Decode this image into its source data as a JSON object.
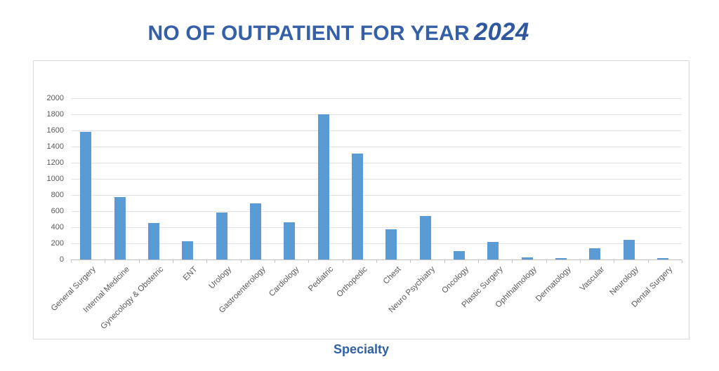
{
  "title": {
    "text": "NO OF OUTPATIENT FOR YEAR",
    "year": "2024"
  },
  "x_axis_title": "Specialty",
  "colors": {
    "bar": "#5B9BD5",
    "title_text": "#3560A8",
    "axis_labels": "#595959",
    "gridline": "#E2E2E2",
    "axis_line": "#BFBFBF"
  },
  "chart_data": {
    "type": "bar",
    "title": "NO OF OUTPATIENT FOR YEAR 2024",
    "xlabel": "Specialty",
    "ylabel": "",
    "categories": [
      "General Surgery",
      "Internal Medicine",
      "Gynecology & Obstetric",
      "ENT",
      "Urology",
      "Gastroenterology",
      "Cardiology",
      "Pediatric",
      "Orthopedic",
      "Chest",
      "Neuro Psychiatry",
      "Oncology",
      "Plastic Surgery",
      "Ophthalmology",
      "Dermatology",
      "Vascular",
      "Neurology",
      "Dental Surgery"
    ],
    "values": [
      1580,
      770,
      450,
      225,
      580,
      695,
      465,
      1800,
      1310,
      370,
      540,
      105,
      215,
      25,
      15,
      135,
      240,
      15
    ],
    "ylim": [
      0,
      2000
    ],
    "ytick_step": 200,
    "yticks": [
      0,
      200,
      400,
      600,
      800,
      1000,
      1200,
      1400,
      1600,
      1800,
      2000
    ],
    "grid": true,
    "legend": false,
    "bar_color": "#5B9BD5"
  }
}
